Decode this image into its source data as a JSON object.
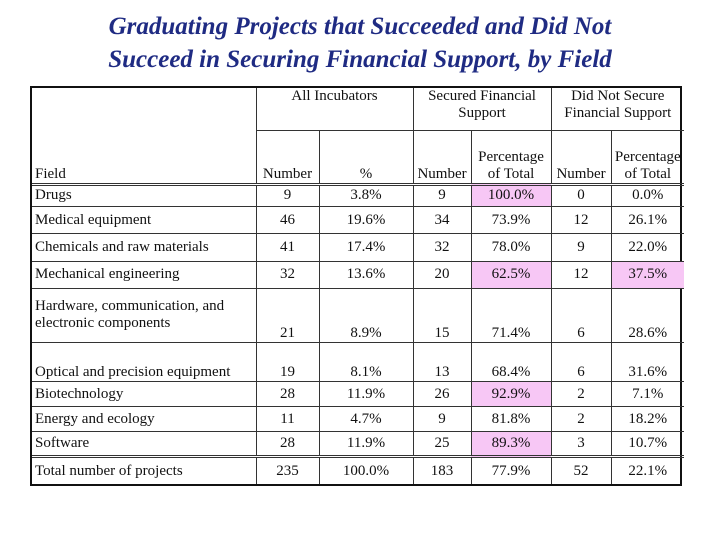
{
  "title": {
    "line1": "Graduating Projects that Succeeded and Did Not",
    "line2": "Succeed in Securing Financial Support, by Field"
  },
  "header": {
    "group_all": "All Incubators",
    "group_secured": "Secured Financial Support",
    "group_not_secured": "Did Not Secure Financial Support",
    "field": "Field",
    "number": "Number",
    "percent": "%",
    "pct_of_total": "Percentage of Total"
  },
  "rows": [
    {
      "field": "Drugs",
      "all_num": "9",
      "all_pct": "3.8%",
      "sec_num": "9",
      "sec_pct": "100.0%",
      "not_num": "0",
      "not_pct": "0.0%"
    },
    {
      "field": "Medical equipment",
      "all_num": "46",
      "all_pct": "19.6%",
      "sec_num": "34",
      "sec_pct": "73.9%",
      "not_num": "12",
      "not_pct": "26.1%"
    },
    {
      "field": "Chemicals and raw materials",
      "all_num": "41",
      "all_pct": "17.4%",
      "sec_num": "32",
      "sec_pct": "78.0%",
      "not_num": "9",
      "not_pct": "22.0%"
    },
    {
      "field": "Mechanical engineering",
      "all_num": "32",
      "all_pct": "13.6%",
      "sec_num": "20",
      "sec_pct": "62.5%",
      "not_num": "12",
      "not_pct": "37.5%"
    },
    {
      "field": "Hardware, communication, and electronic components",
      "all_num": "21",
      "all_pct": "8.9%",
      "sec_num": "15",
      "sec_pct": "71.4%",
      "not_num": "6",
      "not_pct": "28.6%"
    },
    {
      "field": "Optical and precision equipment",
      "all_num": "19",
      "all_pct": "8.1%",
      "sec_num": "13",
      "sec_pct": "68.4%",
      "not_num": "6",
      "not_pct": "31.6%"
    },
    {
      "field": "Biotechnology",
      "all_num": "28",
      "all_pct": "11.9%",
      "sec_num": "26",
      "sec_pct": "92.9%",
      "not_num": "2",
      "not_pct": "7.1%"
    },
    {
      "field": "Energy and ecology",
      "all_num": "11",
      "all_pct": "4.7%",
      "sec_num": "9",
      "sec_pct": "81.8%",
      "not_num": "2",
      "not_pct": "18.2%"
    },
    {
      "field": "Software",
      "all_num": "28",
      "all_pct": "11.9%",
      "sec_num": "25",
      "sec_pct": "89.3%",
      "not_num": "3",
      "not_pct": "10.7%"
    },
    {
      "field": "Total number of projects",
      "all_num": "235",
      "all_pct": "100.0%",
      "sec_num": "183",
      "sec_pct": "77.9%",
      "not_num": "52",
      "not_pct": "22.1%"
    }
  ],
  "colors": {
    "title": "#1f2b83",
    "highlight": "#f7c7f5"
  }
}
